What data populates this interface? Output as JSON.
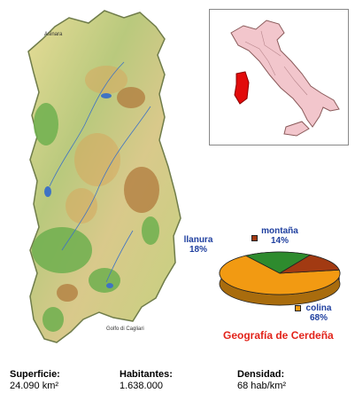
{
  "title": "Geografía de Cerdeña",
  "colors": {
    "title": "#e2231a",
    "labels": "#1f3f9f",
    "llanura": "#2e8b2e",
    "montana": "#a23a12",
    "colina": "#f29a12",
    "italy_fill": "#f2c6cc",
    "sardinia_highlight": "#e20b0b"
  },
  "chart_data": {
    "type": "pie",
    "title": "Geografía de Cerdeña",
    "slices": [
      {
        "label": "llanura",
        "value": 18,
        "display": "18%"
      },
      {
        "label": "montaña",
        "value": 14,
        "display": "14%"
      },
      {
        "label": "colina",
        "value": 68,
        "display": "68%"
      }
    ]
  },
  "stats": [
    {
      "label": "Superficie:",
      "value": "24.090 km²"
    },
    {
      "label": "Habitantes:",
      "value": "1.638.000"
    },
    {
      "label": "Densidad:",
      "value": "68 hab/km²"
    }
  ],
  "map": {
    "labels": [
      "Asinara",
      "Golfo di Cagliari"
    ]
  }
}
